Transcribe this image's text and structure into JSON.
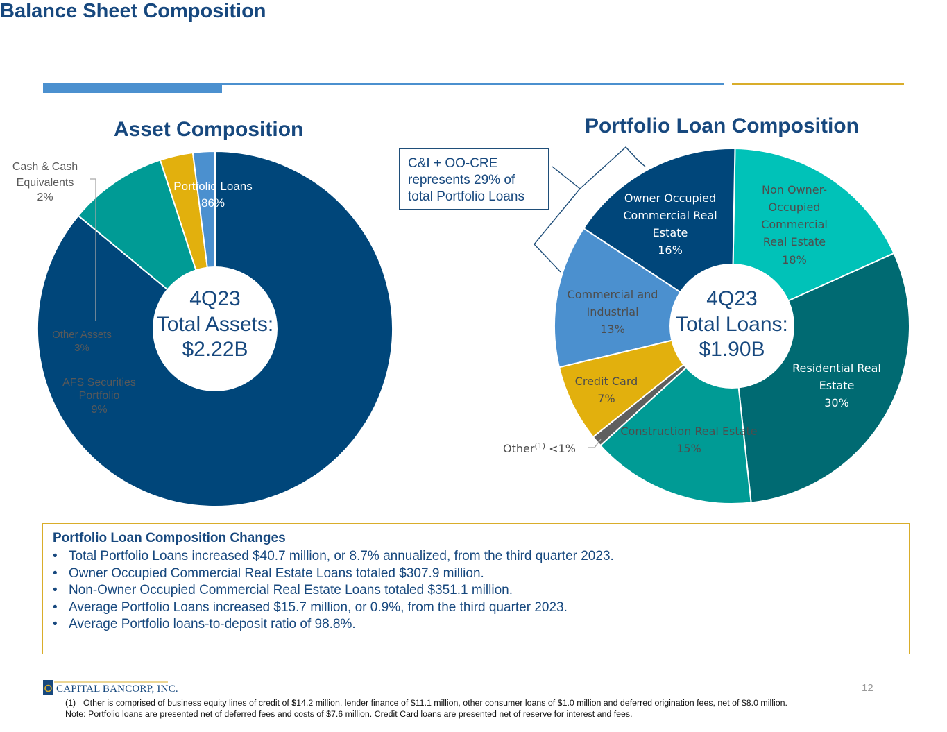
{
  "page": {
    "title": "Balance Sheet Composition",
    "page_number": "12",
    "colors": {
      "navy": "#00467a",
      "accent_blue": "#4b90cf",
      "gold": "#d9ad2a",
      "title_blue": "#17487e"
    }
  },
  "logo": {
    "text": "CAPITAL BANCORP, INC."
  },
  "asset_chart": {
    "title": "Asset Composition",
    "center_line1": "4Q23",
    "center_line2": "Total Assets:",
    "center_line3": "$2.22B"
  },
  "loan_chart": {
    "title": "Portfolio Loan Composition",
    "center_line1": "4Q23",
    "center_line2": "Total Loans:",
    "center_line3": "$1.90B"
  },
  "callout": {
    "text": "C&I + OO-CRE represents 29% of total Portfolio Loans"
  },
  "chart_data": [
    {
      "type": "pie",
      "title": "Asset Composition",
      "categories": [
        "Portfolio Loans",
        "AFS Securities Portfolio",
        "Other Assets",
        "Cash & Cash Equivalents"
      ],
      "values": [
        86,
        9,
        3,
        2
      ],
      "value_labels": [
        "86%",
        "9%",
        "3%",
        "2%"
      ],
      "colors": [
        "#00467a",
        "#009b95",
        "#e2b00d",
        "#4b90cf"
      ],
      "donut": true,
      "center_text": [
        "4Q23",
        "Total Assets:",
        "$2.22B"
      ]
    },
    {
      "type": "pie",
      "title": "Portfolio Loan Composition",
      "categories": [
        "Non Owner-Occupied Commercial Real Estate",
        "Residential Real Estate",
        "Construction Real Estate",
        "Other",
        "Credit Card",
        "Commercial and Industrial",
        "Owner Occupied Commercial Real Estate"
      ],
      "values": [
        18,
        30,
        15,
        1,
        7,
        13,
        16
      ],
      "value_labels": [
        "18%",
        "30%",
        "15%",
        "<1%",
        "7%",
        "13%",
        "16%"
      ],
      "colors": [
        "#00c2b8",
        "#006a72",
        "#009b95",
        "#5f5f5f",
        "#e2b00d",
        "#4b90cf",
        "#00467a"
      ],
      "donut": true,
      "center_text": [
        "4Q23",
        "Total Loans:",
        "$1.90B"
      ]
    }
  ],
  "changes": {
    "title": "Portfolio Loan Composition Changes",
    "items": [
      "Total Portfolio Loans increased $40.7 million, or 8.7% annualized, from the third quarter 2023.",
      "Owner Occupied Commercial Real Estate Loans totaled $307.9 million.",
      "Non-Owner Occupied Commercial Real Estate Loans totaled $351.1 million.",
      "Average Portfolio Loans increased $15.7 million, or 0.9%, from the third quarter 2023.",
      "Average Portfolio loans-to-deposit ratio of 98.8%."
    ]
  },
  "footnotes": {
    "num": "(1)",
    "other": "Other is comprised of business equity lines of credit of $14.2 million, lender finance of $11.1 million, other consumer loans of $1.0 million and deferred origination fees, net of $8.0 million.",
    "note": "Note: Portfolio loans are presented net of deferred fees and costs of $7.6 million. Credit Card loans are presented net of reserve for interest and fees."
  }
}
